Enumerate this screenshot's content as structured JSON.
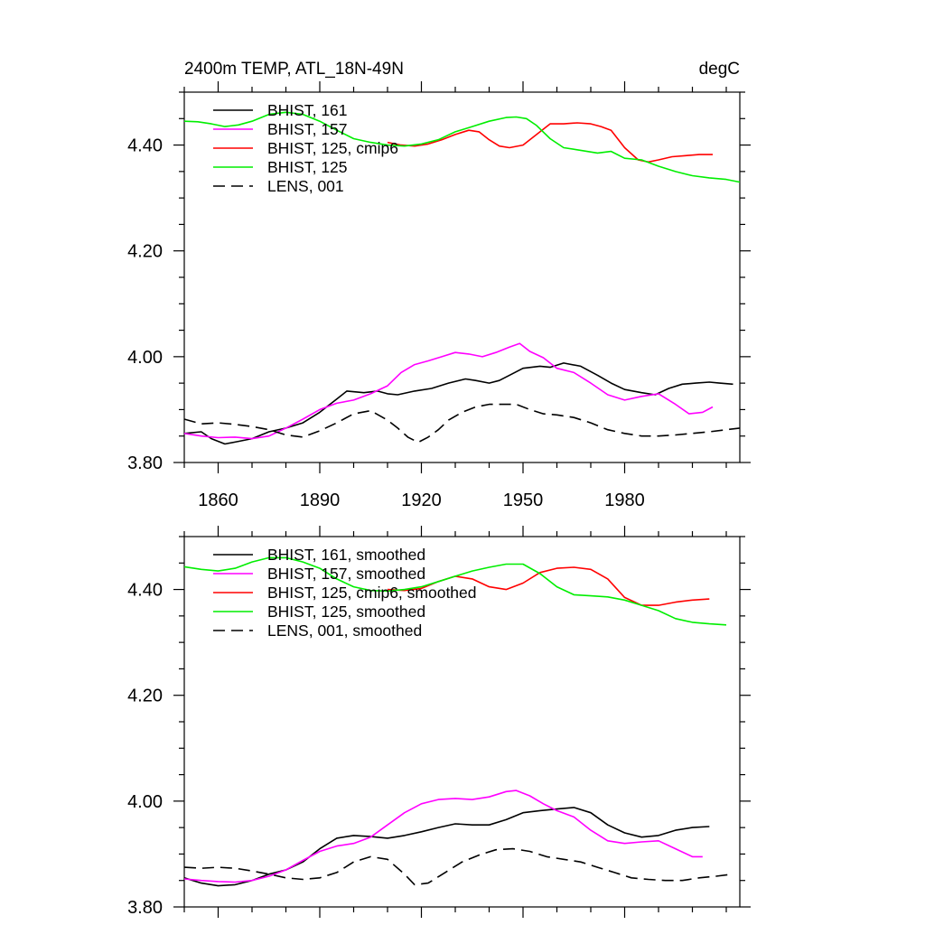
{
  "colors": {
    "black": "#000000",
    "magenta": "#ff00ff",
    "red": "#ff0000",
    "green": "#00ee00"
  },
  "chart_data": [
    {
      "type": "line",
      "title": "2400m TEMP, ATL_18N-49N",
      "units": "degC",
      "xlim": [
        1850,
        2014
      ],
      "ylim": [
        3.8,
        4.5
      ],
      "xticks": [
        1860,
        1890,
        1920,
        1950,
        1980
      ],
      "xtick_labels": [
        "1860",
        "1890",
        "1920",
        "1950",
        "1980"
      ],
      "yticks": [
        3.8,
        4.0,
        4.2,
        4.4
      ],
      "ytick_labels": [
        "3.80",
        "4.00",
        "4.20",
        "4.40"
      ],
      "legend_position": "top-left",
      "series": [
        {
          "name": "BHIST, 161",
          "color": "#000000",
          "dash": "solid",
          "x": [
            1850,
            1855,
            1858,
            1862,
            1866,
            1870,
            1875,
            1880,
            1885,
            1890,
            1895,
            1898,
            1903,
            1907,
            1910,
            1913,
            1918,
            1923,
            1928,
            1933,
            1936,
            1940,
            1943,
            1946,
            1950,
            1955,
            1958,
            1962,
            1967,
            1972,
            1976,
            1980,
            1985,
            1989,
            1993,
            1997,
            2001,
            2005,
            2008,
            2012
          ],
          "values": [
            3.855,
            3.858,
            3.845,
            3.835,
            3.84,
            3.845,
            3.858,
            3.865,
            3.875,
            3.895,
            3.92,
            3.935,
            3.932,
            3.935,
            3.93,
            3.928,
            3.935,
            3.94,
            3.95,
            3.958,
            3.955,
            3.95,
            3.955,
            3.965,
            3.978,
            3.982,
            3.98,
            3.988,
            3.982,
            3.965,
            3.95,
            3.938,
            3.932,
            3.928,
            3.94,
            3.948,
            3.95,
            3.952,
            3.95,
            3.948
          ]
        },
        {
          "name": "BHIST, 157",
          "color": "#ff00ff",
          "dash": "solid",
          "x": [
            1850,
            1855,
            1860,
            1865,
            1870,
            1875,
            1880,
            1885,
            1890,
            1895,
            1900,
            1905,
            1910,
            1914,
            1918,
            1922,
            1926,
            1930,
            1934,
            1938,
            1942,
            1946,
            1949,
            1952,
            1956,
            1960,
            1965,
            1970,
            1975,
            1980,
            1985,
            1990,
            1995,
            1999,
            2003,
            2006
          ],
          "values": [
            3.855,
            3.85,
            3.847,
            3.848,
            3.845,
            3.85,
            3.865,
            3.882,
            3.9,
            3.912,
            3.918,
            3.93,
            3.945,
            3.97,
            3.985,
            3.992,
            4.0,
            4.008,
            4.005,
            4.0,
            4.008,
            4.018,
            4.025,
            4.01,
            3.998,
            3.978,
            3.97,
            3.95,
            3.928,
            3.918,
            3.925,
            3.93,
            3.91,
            3.892,
            3.895,
            3.905
          ]
        },
        {
          "name": "BHIST, 125, cmip6",
          "color": "#ff0000",
          "dash": "solid",
          "x": [
            1910,
            1914,
            1918,
            1922,
            1926,
            1930,
            1934,
            1937,
            1940,
            1943,
            1946,
            1950,
            1954,
            1958,
            1962,
            1966,
            1970,
            1973,
            1976,
            1980,
            1984,
            1987,
            1990,
            1994,
            1998,
            2002,
            2006
          ],
          "values": [
            4.405,
            4.4,
            4.398,
            4.402,
            4.41,
            4.42,
            4.428,
            4.425,
            4.41,
            4.398,
            4.395,
            4.4,
            4.42,
            4.44,
            4.44,
            4.442,
            4.44,
            4.435,
            4.428,
            4.395,
            4.372,
            4.368,
            4.372,
            4.378,
            4.38,
            4.382,
            4.382
          ]
        },
        {
          "name": "BHIST, 125",
          "color": "#00ee00",
          "dash": "solid",
          "x": [
            1850,
            1854,
            1858,
            1862,
            1866,
            1870,
            1875,
            1880,
            1885,
            1890,
            1895,
            1900,
            1905,
            1910,
            1915,
            1920,
            1925,
            1930,
            1935,
            1940,
            1945,
            1948,
            1951,
            1954,
            1958,
            1962,
            1967,
            1972,
            1976,
            1980,
            1985,
            1990,
            1995,
            2000,
            2005,
            2010,
            2014
          ],
          "values": [
            4.445,
            4.444,
            4.44,
            4.435,
            4.438,
            4.445,
            4.458,
            4.462,
            4.458,
            4.445,
            4.428,
            4.412,
            4.405,
            4.4,
            4.398,
            4.402,
            4.41,
            4.425,
            4.435,
            4.445,
            4.452,
            4.453,
            4.45,
            4.437,
            4.412,
            4.395,
            4.39,
            4.385,
            4.388,
            4.375,
            4.372,
            4.36,
            4.35,
            4.342,
            4.338,
            4.335,
            4.33
          ]
        },
        {
          "name": "LENS, 001",
          "color": "#000000",
          "dash": "dashed",
          "x": [
            1850,
            1855,
            1860,
            1865,
            1870,
            1875,
            1880,
            1885,
            1890,
            1895,
            1900,
            1905,
            1910,
            1913,
            1916,
            1919,
            1922,
            1925,
            1928,
            1932,
            1936,
            1940,
            1944,
            1948,
            1952,
            1956,
            1960,
            1965,
            1970,
            1975,
            1980,
            1985,
            1990,
            1995,
            2000,
            2005,
            2010,
            2014
          ],
          "values": [
            3.882,
            3.873,
            3.875,
            3.872,
            3.868,
            3.862,
            3.852,
            3.848,
            3.86,
            3.875,
            3.892,
            3.898,
            3.88,
            3.865,
            3.848,
            3.838,
            3.848,
            3.862,
            3.88,
            3.895,
            3.905,
            3.91,
            3.91,
            3.91,
            3.9,
            3.892,
            3.89,
            3.885,
            3.875,
            3.862,
            3.855,
            3.85,
            3.85,
            3.852,
            3.855,
            3.858,
            3.862,
            3.865
          ]
        }
      ]
    },
    {
      "type": "line",
      "title": "",
      "xlim": [
        1850,
        2014
      ],
      "ylim": [
        3.8,
        4.5
      ],
      "xticks": [
        1860,
        1890,
        1920,
        1950,
        1980
      ],
      "yticks": [
        3.8,
        4.0,
        4.2,
        4.4
      ],
      "ytick_labels": [
        "3.80",
        "4.00",
        "4.20",
        "4.40"
      ],
      "legend_position": "top-left",
      "series": [
        {
          "name": "BHIST, 161, smoothed",
          "color": "#000000",
          "dash": "solid",
          "x": [
            1850,
            1855,
            1860,
            1865,
            1870,
            1875,
            1880,
            1885,
            1890,
            1895,
            1900,
            1905,
            1910,
            1915,
            1920,
            1925,
            1930,
            1935,
            1940,
            1945,
            1950,
            1955,
            1960,
            1965,
            1970,
            1975,
            1980,
            1985,
            1990,
            1995,
            2000,
            2005
          ],
          "values": [
            3.855,
            3.845,
            3.84,
            3.842,
            3.85,
            3.862,
            3.87,
            3.885,
            3.91,
            3.93,
            3.935,
            3.933,
            3.93,
            3.935,
            3.942,
            3.95,
            3.957,
            3.955,
            3.955,
            3.965,
            3.978,
            3.982,
            3.985,
            3.988,
            3.978,
            3.955,
            3.94,
            3.932,
            3.935,
            3.945,
            3.95,
            3.952
          ]
        },
        {
          "name": "BHIST, 157, smoothed",
          "color": "#ff00ff",
          "dash": "solid",
          "x": [
            1850,
            1855,
            1860,
            1865,
            1870,
            1875,
            1880,
            1885,
            1890,
            1895,
            1900,
            1905,
            1910,
            1915,
            1920,
            1925,
            1930,
            1935,
            1940,
            1945,
            1948,
            1952,
            1956,
            1960,
            1965,
            1970,
            1975,
            1980,
            1985,
            1990,
            1995,
            2000,
            2003
          ],
          "values": [
            3.853,
            3.85,
            3.848,
            3.847,
            3.85,
            3.858,
            3.87,
            3.888,
            3.905,
            3.915,
            3.92,
            3.932,
            3.955,
            3.978,
            3.995,
            4.003,
            4.005,
            4.003,
            4.008,
            4.018,
            4.02,
            4.01,
            3.995,
            3.982,
            3.97,
            3.945,
            3.925,
            3.92,
            3.923,
            3.925,
            3.91,
            3.895,
            3.895
          ]
        },
        {
          "name": "BHIST, 125, cmip6, smoothed",
          "color": "#ff0000",
          "dash": "solid",
          "x": [
            1910,
            1915,
            1920,
            1925,
            1930,
            1935,
            1940,
            1945,
            1950,
            1955,
            1960,
            1965,
            1970,
            1975,
            1980,
            1985,
            1990,
            1995,
            2000,
            2005
          ],
          "values": [
            4.4,
            4.398,
            4.402,
            4.415,
            4.425,
            4.42,
            4.405,
            4.4,
            4.412,
            4.432,
            4.44,
            4.442,
            4.438,
            4.42,
            4.385,
            4.37,
            4.37,
            4.376,
            4.38,
            4.382
          ]
        },
        {
          "name": "BHIST, 125, smoothed",
          "color": "#00ee00",
          "dash": "solid",
          "x": [
            1850,
            1855,
            1860,
            1865,
            1870,
            1875,
            1880,
            1885,
            1890,
            1895,
            1900,
            1905,
            1910,
            1915,
            1920,
            1925,
            1930,
            1935,
            1940,
            1945,
            1950,
            1955,
            1960,
            1965,
            1970,
            1975,
            1980,
            1985,
            1990,
            1995,
            2000,
            2005,
            2010
          ],
          "values": [
            4.443,
            4.438,
            4.435,
            4.44,
            4.452,
            4.46,
            4.46,
            4.452,
            4.44,
            4.42,
            4.405,
            4.398,
            4.397,
            4.4,
            4.405,
            4.415,
            4.425,
            4.435,
            4.442,
            4.448,
            4.448,
            4.43,
            4.405,
            4.39,
            4.388,
            4.386,
            4.38,
            4.37,
            4.36,
            4.345,
            4.338,
            4.335,
            4.333
          ]
        },
        {
          "name": "LENS, 001, smoothed",
          "color": "#000000",
          "dash": "dashed",
          "x": [
            1850,
            1855,
            1860,
            1865,
            1870,
            1875,
            1880,
            1885,
            1890,
            1895,
            1900,
            1905,
            1910,
            1915,
            1918,
            1922,
            1927,
            1932,
            1937,
            1942,
            1947,
            1952,
            1957,
            1962,
            1967,
            1972,
            1977,
            1982,
            1987,
            1992,
            1997,
            2002,
            2007,
            2012
          ],
          "values": [
            3.875,
            3.873,
            3.875,
            3.873,
            3.868,
            3.862,
            3.855,
            3.852,
            3.855,
            3.865,
            3.885,
            3.895,
            3.89,
            3.862,
            3.842,
            3.845,
            3.865,
            3.885,
            3.898,
            3.908,
            3.91,
            3.905,
            3.895,
            3.89,
            3.885,
            3.875,
            3.865,
            3.855,
            3.852,
            3.85,
            3.85,
            3.855,
            3.858,
            3.862
          ]
        }
      ]
    }
  ]
}
